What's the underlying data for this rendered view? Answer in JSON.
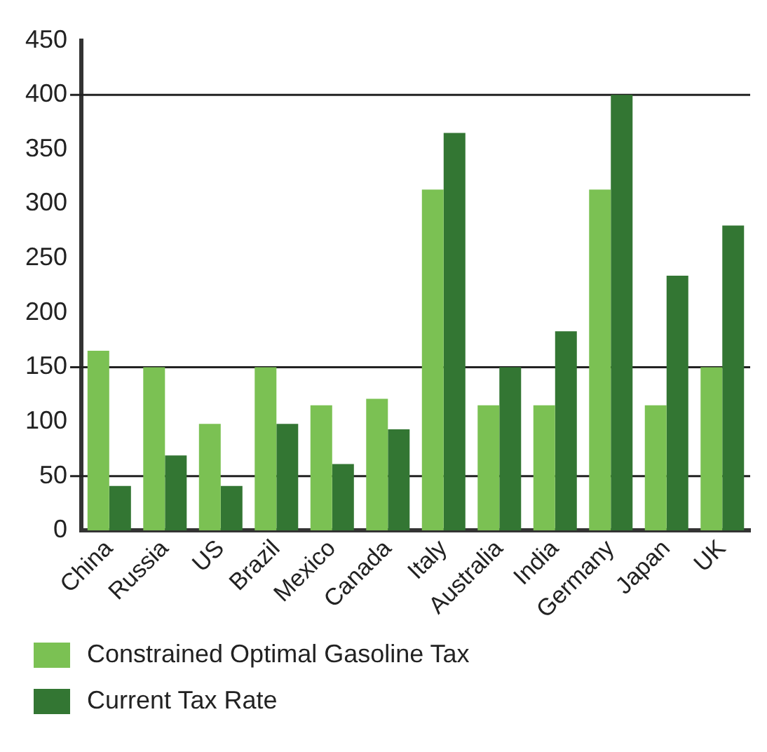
{
  "chart_data": {
    "type": "bar",
    "categories": [
      "China",
      "Russia",
      "US",
      "Brazil",
      "Mexico",
      "Canada",
      "Italy",
      "Australia",
      "India",
      "Germany",
      "Japan",
      "UK"
    ],
    "series": [
      {
        "name": "Constrained Optimal Gasoline Tax",
        "color": "#7bc153",
        "values": [
          165,
          150,
          98,
          150,
          115,
          121,
          313,
          115,
          115,
          313,
          115,
          150
        ]
      },
      {
        "name": "Current Tax Rate",
        "color": "#337633",
        "values": [
          41,
          69,
          41,
          98,
          61,
          93,
          365,
          150,
          183,
          400,
          234,
          280
        ]
      }
    ],
    "ylim": [
      0,
      450
    ],
    "yticks": [
      0,
      50,
      100,
      150,
      200,
      250,
      300,
      350,
      400,
      450
    ],
    "ref_lines": [
      {
        "axis": "y",
        "value": 50,
        "color": "#222222"
      },
      {
        "axis": "y",
        "value": 150,
        "color": "#222222"
      },
      {
        "axis": "y",
        "value": 400,
        "color": "#222222"
      }
    ],
    "legend": "bottom"
  }
}
